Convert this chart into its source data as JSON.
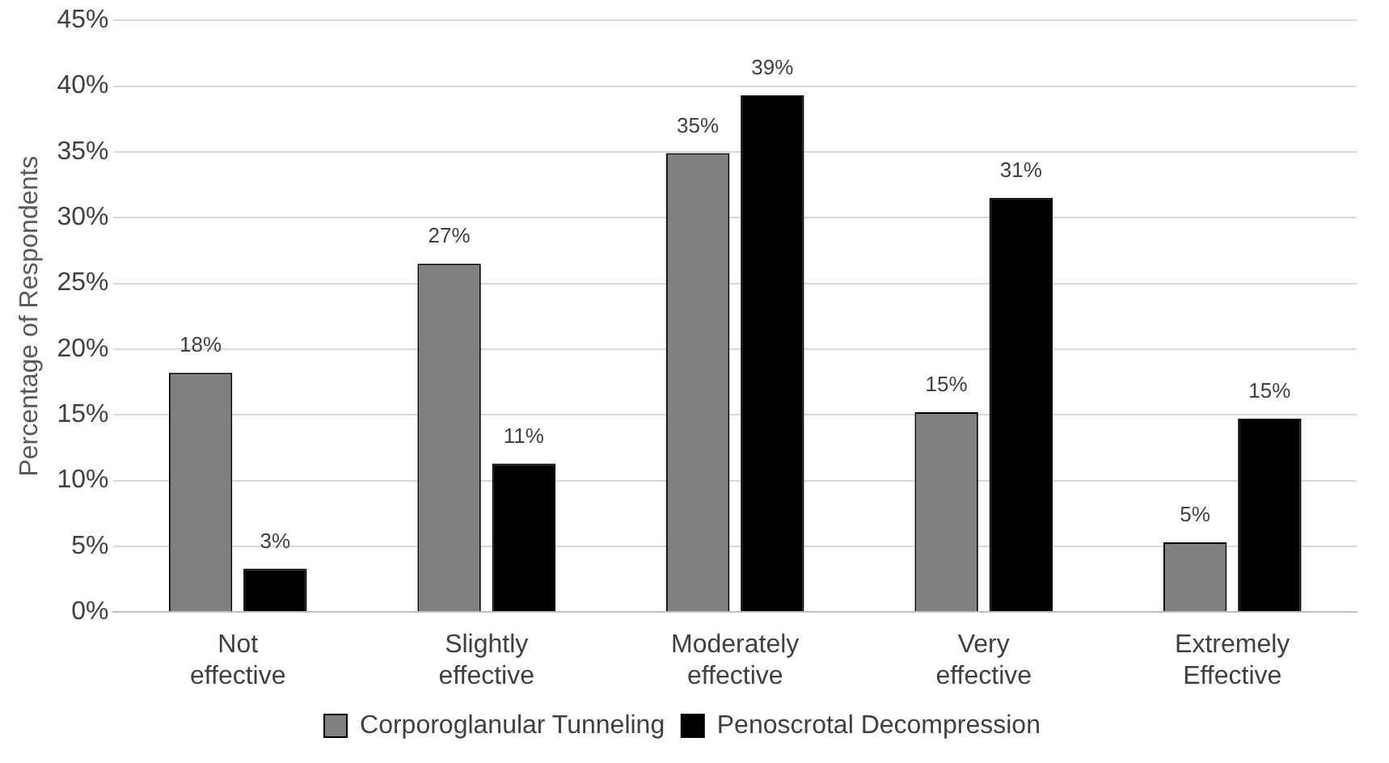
{
  "chart_data": {
    "type": "bar",
    "ylabel": "Percentage of Respondents",
    "categories": [
      "Not effective",
      "Slightly effective",
      "Moderately effective",
      "Very effective",
      "Extremely Effective"
    ],
    "series": [
      {
        "name": "Corporoglanular Tunneling",
        "color": "#808080",
        "values": [
          18.2,
          26.5,
          34.9,
          15.2,
          5.3
        ],
        "value_labels": [
          "18%",
          "27%",
          "35%",
          "15%",
          "5%"
        ]
      },
      {
        "name": "Penoscrotal Decompression",
        "color": "#000000",
        "values": [
          3.3,
          11.3,
          39.3,
          31.5,
          14.7
        ],
        "value_labels": [
          "3%",
          "11%",
          "39%",
          "31%",
          "15%"
        ]
      }
    ],
    "ylim": [
      0,
      45
    ],
    "yticks": [
      {
        "value": 0,
        "label": "0%"
      },
      {
        "value": 5,
        "label": "5%"
      },
      {
        "value": 10,
        "label": "10%"
      },
      {
        "value": 15,
        "label": "15%"
      },
      {
        "value": 20,
        "label": "20%"
      },
      {
        "value": 25,
        "label": "25%"
      },
      {
        "value": 30,
        "label": "30%"
      },
      {
        "value": 35,
        "label": "35%"
      },
      {
        "value": 40,
        "label": "40%"
      },
      {
        "value": 45,
        "label": "45%"
      }
    ],
    "grid": "y",
    "legend": "bottom"
  }
}
